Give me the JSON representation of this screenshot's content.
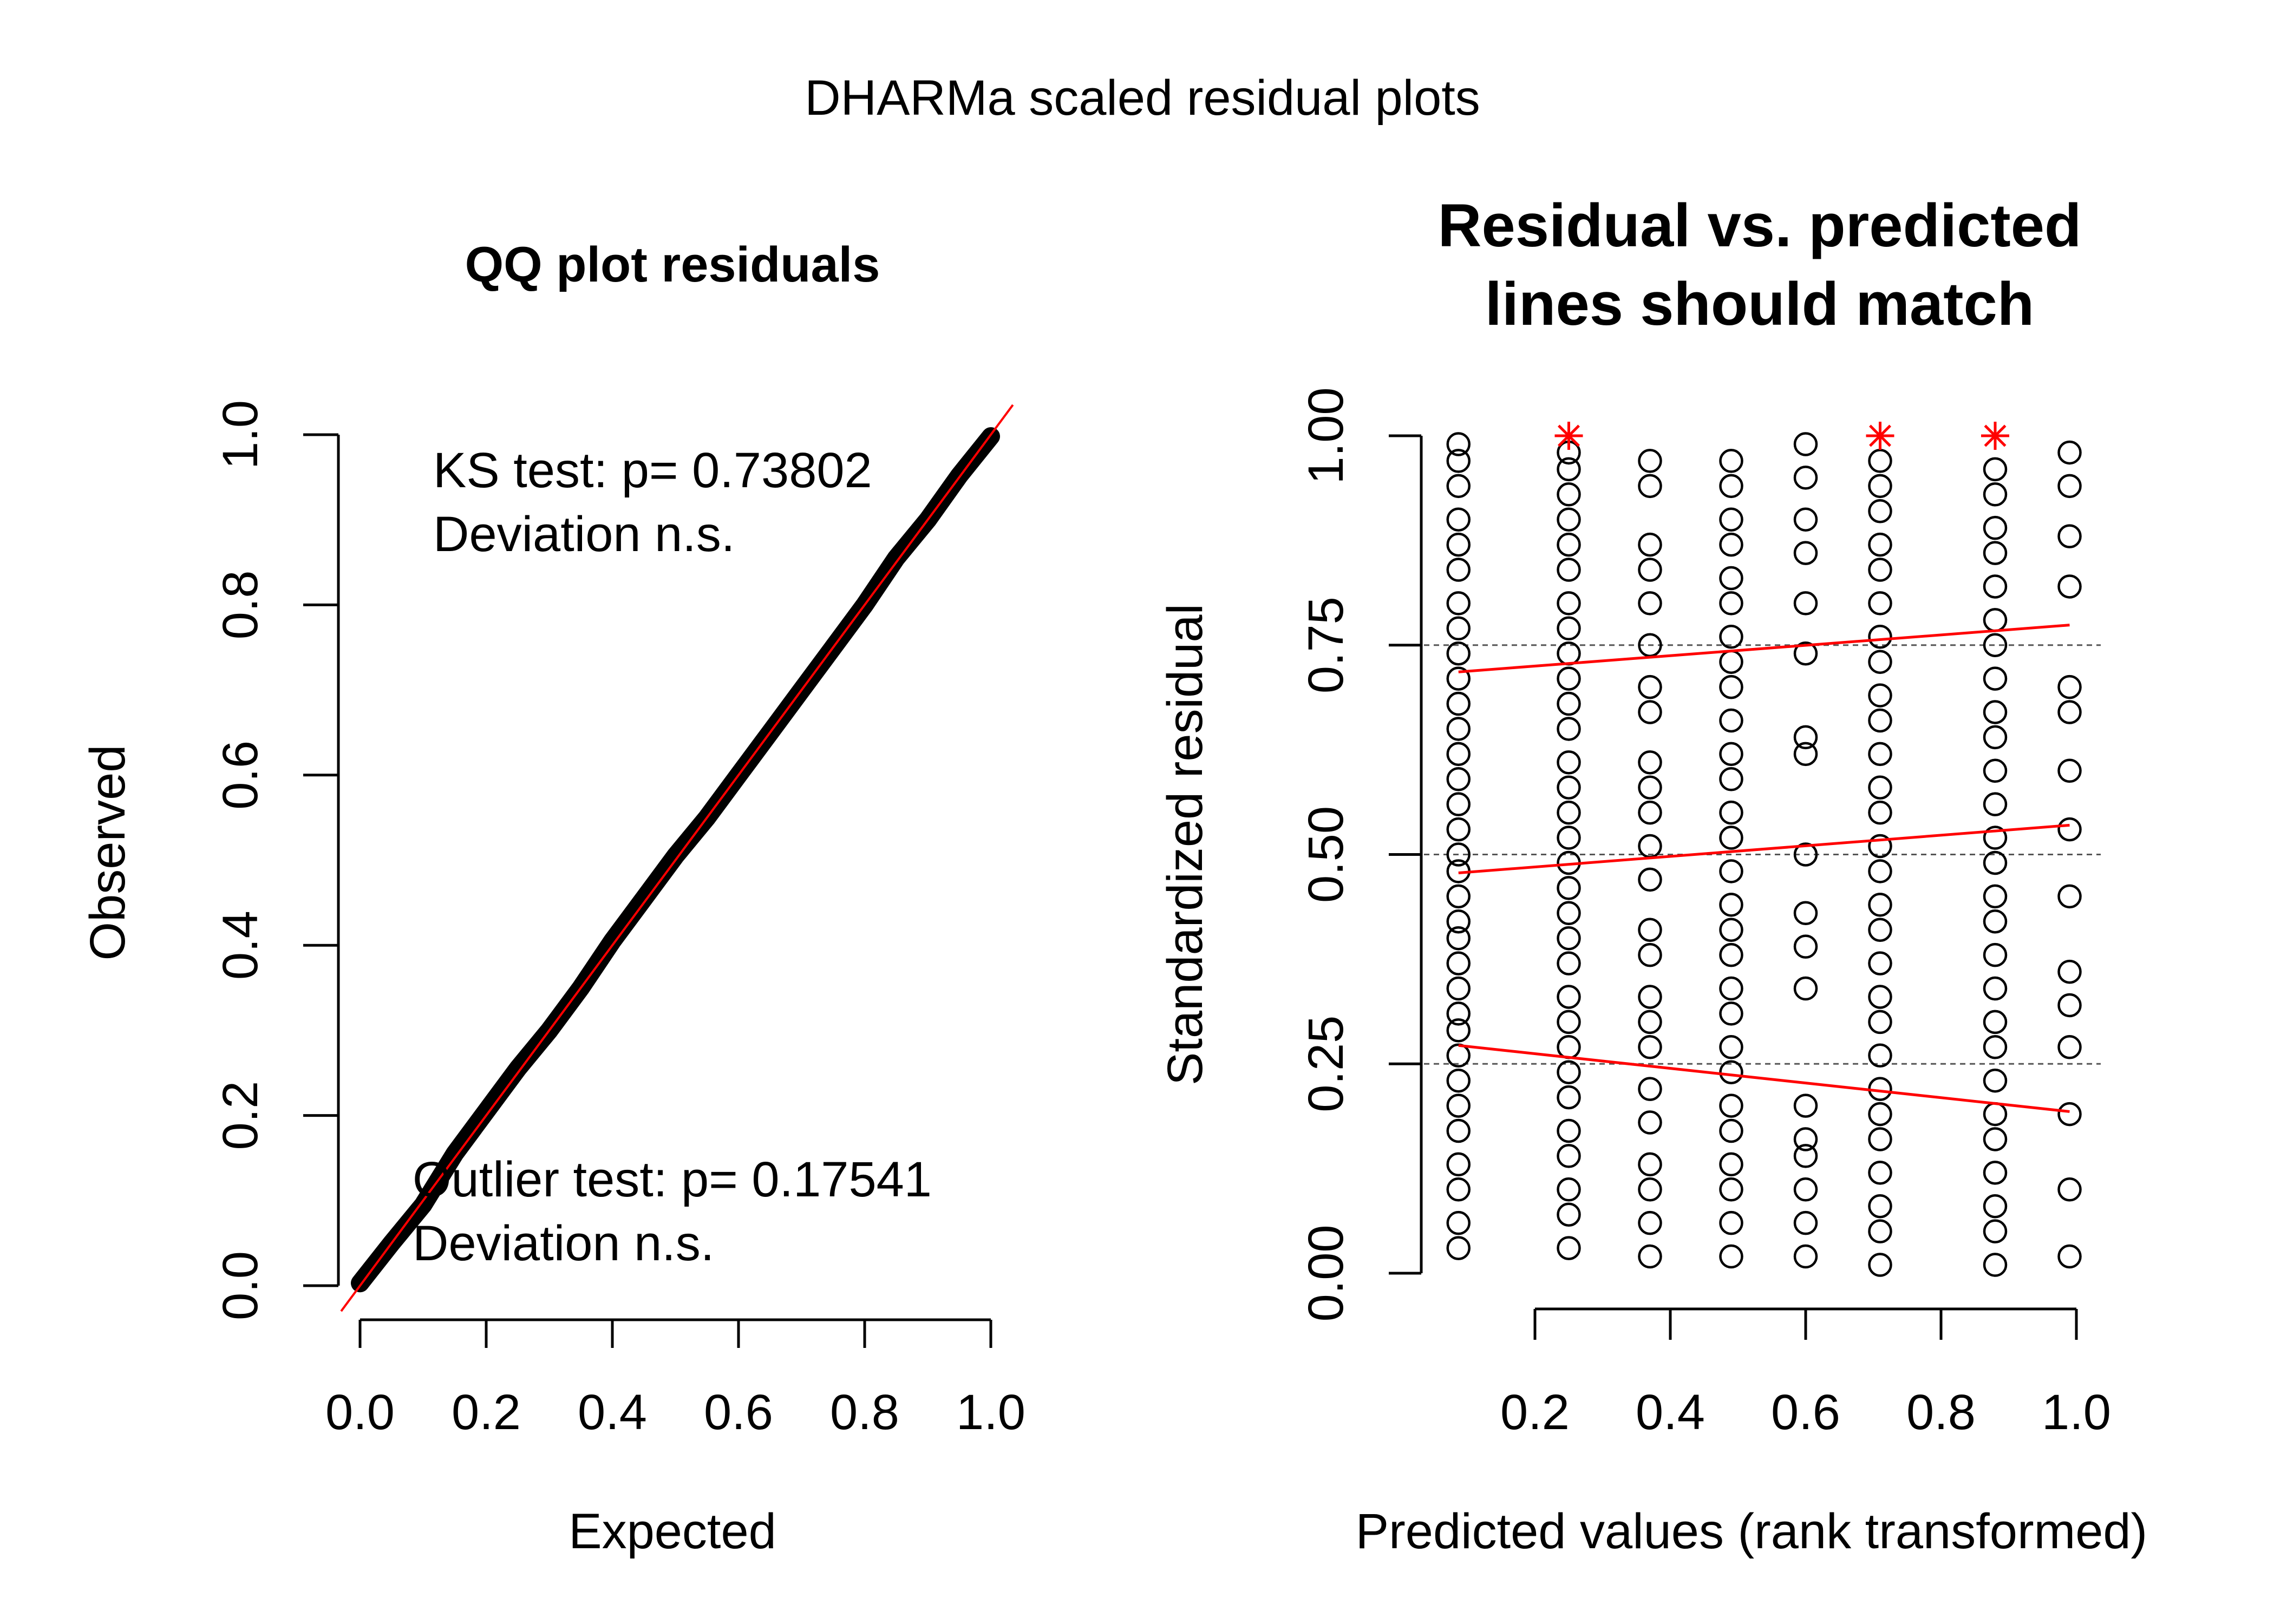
{
  "figure": {
    "title": "DHARMa scaled residual plots"
  },
  "colors": {
    "background": "#ffffff",
    "foreground": "#000000",
    "accent": "#ff0000",
    "reference_line": "#555555"
  },
  "chart_data": [
    {
      "type": "scatter",
      "title": "QQ plot residuals",
      "xlabel": "Expected",
      "ylabel": "Observed",
      "xlim": [
        0,
        1
      ],
      "ylim": [
        0,
        1
      ],
      "xticks": [
        "0.0",
        "0.2",
        "0.4",
        "0.6",
        "0.8",
        "1.0"
      ],
      "yticks": [
        "0.0",
        "0.2",
        "0.4",
        "0.6",
        "0.8",
        "1.0"
      ],
      "grid": false,
      "reference_line": {
        "intercept": 0,
        "slope": 1,
        "color": "#ff0000"
      },
      "series": [
        {
          "x": [
            0.0,
            0.05,
            0.1,
            0.15,
            0.2,
            0.25,
            0.3,
            0.35,
            0.4,
            0.45,
            0.5,
            0.55,
            0.6,
            0.65,
            0.7,
            0.75,
            0.8,
            0.85,
            0.9,
            0.95,
            1.0
          ],
          "y": [
            0.003,
            0.05,
            0.095,
            0.155,
            0.205,
            0.255,
            0.3,
            0.35,
            0.405,
            0.455,
            0.505,
            0.55,
            0.6,
            0.65,
            0.7,
            0.75,
            0.8,
            0.855,
            0.9,
            0.952,
            0.998
          ]
        }
      ],
      "annotations": [
        {
          "line1": "KS test: p= 0.73802",
          "line2": "Deviation  n.s."
        },
        {
          "line1": "Outlier test: p= 0.17541",
          "line2": "Deviation  n.s."
        }
      ]
    },
    {
      "type": "scatter",
      "title_lines": [
        "Residual vs. predicted",
        "lines should match"
      ],
      "xlabel": "Predicted values (rank transformed)",
      "ylabel": "Standardized residual",
      "xlim": [
        0.06,
        1.0
      ],
      "ylim": [
        0,
        1
      ],
      "xticks": [
        "0.2",
        "0.4",
        "0.6",
        "0.8",
        "1.0"
      ],
      "yticks": [
        "0.00",
        "0.25",
        "0.50",
        "0.75",
        "1.00"
      ],
      "hlines": [
        0.25,
        0.5,
        0.75
      ],
      "columns": [
        {
          "x": 0.087,
          "y": [
            0.03,
            0.06,
            0.1,
            0.13,
            0.17,
            0.2,
            0.23,
            0.26,
            0.29,
            0.31,
            0.34,
            0.37,
            0.4,
            0.42,
            0.45,
            0.48,
            0.5,
            0.53,
            0.56,
            0.59,
            0.62,
            0.65,
            0.68,
            0.71,
            0.74,
            0.77,
            0.8,
            0.84,
            0.87,
            0.9,
            0.94,
            0.97,
            0.99
          ]
        },
        {
          "x": 0.25,
          "y": [
            0.03,
            0.07,
            0.1,
            0.14,
            0.17,
            0.21,
            0.24,
            0.27,
            0.3,
            0.33,
            0.37,
            0.4,
            0.43,
            0.46,
            0.49,
            0.52,
            0.55,
            0.58,
            0.61,
            0.65,
            0.68,
            0.71,
            0.74,
            0.77,
            0.8,
            0.84,
            0.87,
            0.9,
            0.93,
            0.96,
            0.98
          ]
        },
        {
          "x": 0.37,
          "y": [
            0.02,
            0.06,
            0.1,
            0.13,
            0.18,
            0.22,
            0.27,
            0.3,
            0.33,
            0.38,
            0.41,
            0.47,
            0.51,
            0.55,
            0.58,
            0.61,
            0.67,
            0.7,
            0.75,
            0.8,
            0.84,
            0.87,
            0.94,
            0.97
          ]
        },
        {
          "x": 0.49,
          "y": [
            0.02,
            0.06,
            0.1,
            0.13,
            0.17,
            0.2,
            0.24,
            0.27,
            0.31,
            0.34,
            0.38,
            0.41,
            0.44,
            0.48,
            0.52,
            0.55,
            0.59,
            0.62,
            0.66,
            0.7,
            0.73,
            0.76,
            0.8,
            0.83,
            0.87,
            0.9,
            0.94,
            0.97
          ]
        },
        {
          "x": 0.6,
          "y": [
            0.02,
            0.06,
            0.1,
            0.14,
            0.16,
            0.2,
            0.34,
            0.39,
            0.43,
            0.5,
            0.62,
            0.64,
            0.74,
            0.8,
            0.86,
            0.9,
            0.95,
            0.99
          ]
        },
        {
          "x": 0.71,
          "y": [
            0.01,
            0.05,
            0.08,
            0.12,
            0.16,
            0.19,
            0.22,
            0.26,
            0.3,
            0.33,
            0.37,
            0.41,
            0.44,
            0.48,
            0.51,
            0.55,
            0.58,
            0.62,
            0.66,
            0.69,
            0.73,
            0.76,
            0.8,
            0.84,
            0.87,
            0.91,
            0.94,
            0.97
          ]
        },
        {
          "x": 0.88,
          "y": [
            0.01,
            0.05,
            0.08,
            0.12,
            0.16,
            0.19,
            0.23,
            0.27,
            0.3,
            0.34,
            0.38,
            0.42,
            0.45,
            0.49,
            0.52,
            0.56,
            0.6,
            0.64,
            0.67,
            0.71,
            0.75,
            0.78,
            0.82,
            0.86,
            0.89,
            0.93,
            0.96
          ]
        },
        {
          "x": 0.99,
          "y": [
            0.02,
            0.1,
            0.19,
            0.27,
            0.32,
            0.36,
            0.45,
            0.53,
            0.6,
            0.67,
            0.7,
            0.82,
            0.88,
            0.94,
            0.98
          ]
        }
      ],
      "outliers": [
        {
          "x": 0.25,
          "y": 1.0
        },
        {
          "x": 0.71,
          "y": 1.0
        },
        {
          "x": 0.88,
          "y": 1.0
        }
      ],
      "quantile_lines": [
        {
          "quantile": 0.25,
          "x": [
            0.087,
            0.99
          ],
          "y": [
            0.272,
            0.193
          ]
        },
        {
          "quantile": 0.5,
          "x": [
            0.087,
            0.99
          ],
          "y": [
            0.478,
            0.535
          ]
        },
        {
          "quantile": 0.75,
          "x": [
            0.087,
            0.99
          ],
          "y": [
            0.718,
            0.774
          ]
        }
      ]
    }
  ]
}
